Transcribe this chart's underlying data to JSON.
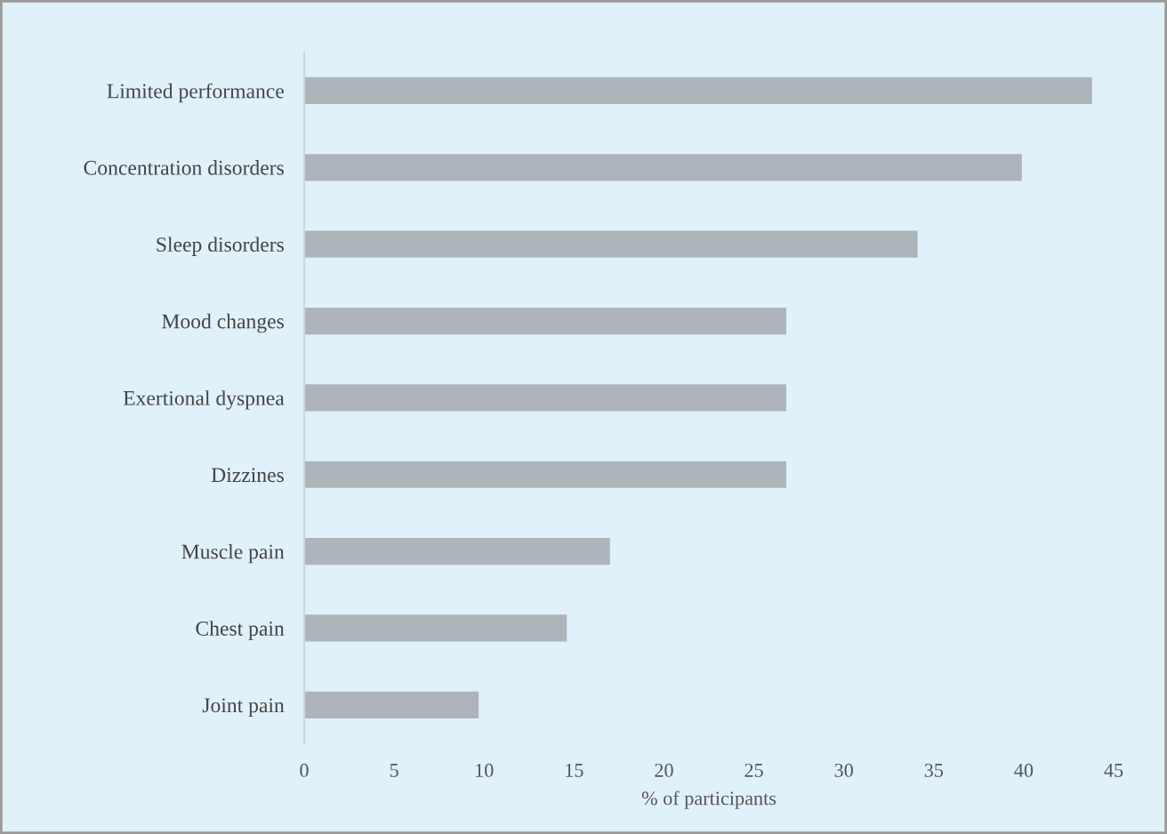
{
  "chart_data": {
    "type": "bar",
    "orientation": "horizontal",
    "xlabel": "% of participants",
    "categories": [
      "Limited performance",
      "Concentration disorders",
      "Sleep disorders",
      "Mood changes",
      "Exertional dyspnea",
      "Dizzines",
      "Muscle pain",
      "Chest pain",
      "Joint pain"
    ],
    "values": [
      43.8,
      39.9,
      34.1,
      26.8,
      26.8,
      26.8,
      17.0,
      14.6,
      9.7
    ],
    "color": "#adb5bb",
    "xlim": [
      0,
      45
    ],
    "xticks": [
      0,
      5,
      10,
      15,
      20,
      25,
      30,
      35,
      40,
      45
    ],
    "grid": false,
    "legend": false
  }
}
